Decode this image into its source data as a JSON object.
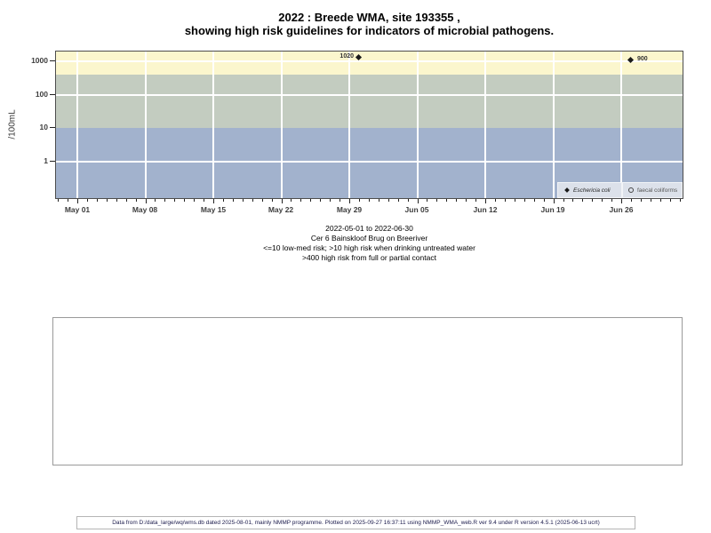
{
  "title": {
    "line1": "2022 : Breede WMA, site 193355 ,",
    "line2": "showing high risk guidelines for indicators of microbial pathogens."
  },
  "chart_data": {
    "type": "scatter",
    "y_scale": "log",
    "ylabel": "/100mL",
    "ylim": [
      0.07,
      2000
    ],
    "y_ticks": [
      "1000",
      "100",
      "10",
      "1"
    ],
    "x_ticks": [
      "May 01",
      "May 08",
      "May 15",
      "May 22",
      "May 29",
      "Jun 05",
      "Jun 12",
      "Jun 19",
      "Jun 26"
    ],
    "x_range": "2022-05-01 to 2022-06-30",
    "grid": true,
    "legend_position": "bottom-right",
    "series": [
      {
        "name": "Eschericia coli",
        "marker": "filled-diamond",
        "points": [
          {
            "date": "2022-05-30",
            "value": 1020,
            "label": "1020"
          },
          {
            "date": "2022-06-27",
            "value": 900,
            "label": "900"
          }
        ]
      },
      {
        "name": "faecal coliforms",
        "marker": "open-circle",
        "points": []
      }
    ],
    "risk_bands": [
      {
        "range": "> 400 /100mL",
        "color": "#fbf6cd",
        "meaning": "high risk from full or partial contact"
      },
      {
        "range": "10 - 400 /100mL",
        "color": "#c3ccc0",
        "meaning": "high risk when drinking untreated water"
      },
      {
        "range": "<= 10 /100mL",
        "color": "#a2b2cd",
        "meaning": "low-med risk"
      }
    ],
    "legend": [
      {
        "marker": "filled-diamond",
        "label": "Eschericia coli"
      },
      {
        "marker": "open-circle",
        "label": "faecal coliforms"
      }
    ]
  },
  "caption": {
    "line1": "2022-05-01 to 2022-06-30",
    "line2": "Cer 6 Bainskloof Brug on Breeriver",
    "line3": "<=10 low-med risk; >10 high risk when drinking untreated water",
    "line4": ">400 high risk from full or partial contact"
  },
  "footer": "Data from D:/data_large/wq/wms.db dated 2025-08-01, mainly NMMP programme. Plotted on 2025-09-27 16:37:11 using NMMP_WMA_web.R ver 9.4 under R version 4.5.1 (2025-06-13 ucrt)"
}
